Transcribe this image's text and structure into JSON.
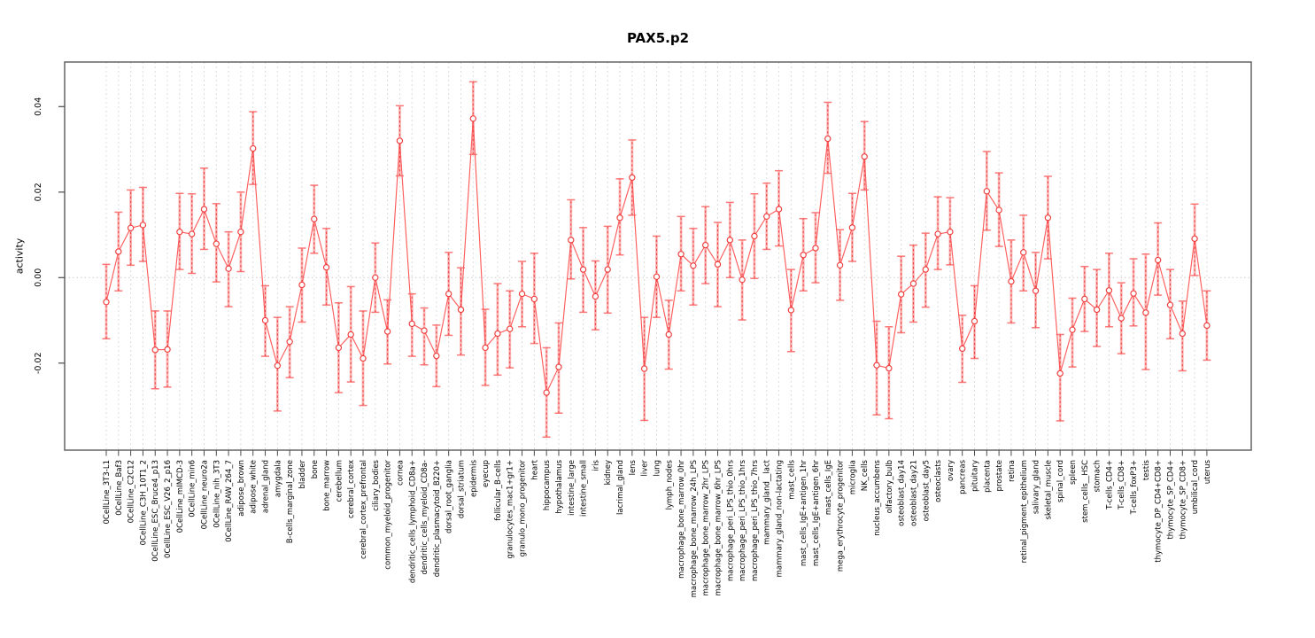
{
  "figure": {
    "kind": "R-style errorbar line plot",
    "background": "#ffffff"
  },
  "colors": {
    "series_line": "#ff5c5c",
    "error_band": "rgba(252,110,110,0.50)",
    "error_cap": "rgba(250,96,96,0.85)",
    "error_center_dash": "#ef3b3b",
    "marker_stroke": "#ef3b3b",
    "marker_fill": "#ffffff",
    "grid_vertical": "#dcdcdc",
    "zero_line": "#c9c9c9",
    "frame": "#6e6e6e",
    "tick": "#4a4a4a",
    "text": "#000000"
  },
  "chart_data": {
    "type": "line",
    "title": "PAX5.p2",
    "xlabel": "",
    "ylabel": "activity",
    "ylim": [
      -0.0408,
      0.05
    ],
    "yticks": [
      -0.02,
      0,
      0.02,
      0.04
    ],
    "ytick_labels": [
      "-0.02",
      "0.00",
      "0.02",
      "0.04"
    ],
    "grid": "vertical dashed gridline at every category; dotted horizontal line at y=0",
    "legend_position": "none",
    "marker": "open-circle",
    "error_bars": true,
    "categories": [
      "0CellLine_3T3-L1",
      "0CellLine_Baf3",
      "0CellLine_C2C12",
      "0CellLine_C3H_10T1_2",
      "0CellLine_ESC_Bruce4_p13",
      "0CellLine_ESC_V26_2_p16",
      "0CellLine_mIMCD-3",
      "0CellLine_min6",
      "0CellLine_neuro2a",
      "0CellLine_nih_3T3",
      "0CellLine_RAW_264_7",
      "adipose_brown",
      "adipose_white",
      "adrenal_gland",
      "amygdala",
      "B-cells_marginal_zone",
      "bladder",
      "bone",
      "bone_marrow",
      "cerebellum",
      "cerebral_cortex",
      "cerebral_cortex_prefrontal",
      "ciliary_bodies",
      "common_myeloid_progenitor",
      "cornea",
      "dendritic_cells_lymphoid_CD8a+",
      "dendritic_cells_myeloid_CD8a-",
      "dendritic_plasmacytoid_B220+",
      "dorsal_root_ganglia",
      "dorsal_striatum",
      "epidermis",
      "eyecup",
      "follicular_B-cells",
      "granulocytes_mac1+gr1+",
      "granulo_mono_progenitor",
      "heart",
      "hippocampus",
      "hypothalamus",
      "intestine_large",
      "intestine_small",
      "iris",
      "kidney",
      "lacrimal_gland",
      "lens",
      "liver",
      "lung",
      "lymph_nodes",
      "macrophage_bone_marrow_0hr",
      "macrophage_bone_marrow_24h_LPS",
      "macrophage_bone_marrow_2hr_LPS",
      "macrophage_bone_marrow_6hr_LPS",
      "macrophage_peri_LPS_thio_0hrs",
      "macrophage_peri_LPS_thio_1hrs",
      "macrophage_peri_LPS_thio_7hrs",
      "mammary_gland__lact",
      "mammary_gland_non-lactating",
      "mast_cells",
      "mast_cells_IgE+antigen_1hr",
      "mast_cells_IgE+antigen_6hr",
      "mast_cells_IgE",
      "mega_erythrocyte_progenitor",
      "microglia",
      "NK_cells",
      "nucleus_accumbens",
      "olfactory_bulb",
      "osteoblast_day14",
      "osteoblast_day21",
      "osteoblast_day5",
      "osteoclasts",
      "ovary",
      "pancreas",
      "pituitary",
      "placenta",
      "prostate",
      "retina",
      "retinal_pigment_epithelium",
      "salivary_gland",
      "skeletal_muscle",
      "spinal_cord",
      "spleen",
      "stem_cells__HSC",
      "stomach",
      "T-cells_CD4+",
      "T-cells_CD8+",
      "T-cells_foxP3+",
      "testis",
      "thymocyte_DP_CD4+CD8+",
      "thymocyte_SP_CD4+",
      "thymocyte_SP_CD8+",
      "umbilical_cord",
      "uterus"
    ],
    "series": [
      {
        "name": "activity",
        "values": [
          -0.0057,
          0.0061,
          0.0116,
          0.0123,
          -0.0169,
          -0.0168,
          0.0107,
          0.0102,
          0.016,
          0.0079,
          0.0021,
          0.0107,
          0.0302,
          -0.01,
          -0.0206,
          -0.015,
          -0.0017,
          0.0137,
          0.0024,
          -0.0164,
          -0.0133,
          -0.0189,
          0.0,
          -0.0126,
          0.032,
          -0.0108,
          -0.0124,
          -0.0183,
          -0.0038,
          -0.0075,
          0.0372,
          -0.0164,
          -0.0131,
          -0.012,
          -0.0038,
          -0.005,
          -0.0269,
          -0.0209,
          0.0088,
          0.0019,
          -0.0044,
          0.0019,
          0.014,
          0.0234,
          -0.0213,
          0.0002,
          -0.0133,
          0.0055,
          0.0028,
          0.0076,
          0.0031,
          0.0088,
          -0.0005,
          0.0097,
          0.0143,
          0.016,
          -0.0076,
          0.0053,
          0.0069,
          0.0325,
          0.0029,
          0.0117,
          0.0283,
          -0.0205,
          -0.0212,
          -0.0039,
          -0.0014,
          0.0019,
          0.0102,
          0.0107,
          -0.0166,
          -0.0102,
          0.0202,
          0.0158,
          -0.0009,
          0.0059,
          -0.0031,
          0.014,
          -0.0224,
          -0.0122,
          -0.005,
          -0.0075,
          -0.003,
          -0.0095,
          -0.0037,
          -0.0082,
          0.0041,
          -0.0064,
          -0.0131,
          0.0091,
          -0.0112
        ],
        "ci_low": [
          -0.0143,
          -0.0031,
          0.0029,
          0.0038,
          -0.026,
          -0.0256,
          0.0019,
          0.001,
          0.0066,
          -0.001,
          -0.0068,
          0.0014,
          0.0218,
          -0.0184,
          -0.0312,
          -0.0234,
          -0.0104,
          0.0057,
          -0.0064,
          -0.0269,
          -0.0244,
          -0.0299,
          -0.0081,
          -0.0202,
          0.0238,
          -0.0184,
          -0.0204,
          -0.0255,
          -0.0135,
          -0.0181,
          0.0288,
          -0.0252,
          -0.0228,
          -0.0211,
          -0.0115,
          -0.0154,
          -0.0373,
          -0.0317,
          -0.0003,
          -0.0081,
          -0.0122,
          -0.0083,
          0.0053,
          0.0146,
          -0.0334,
          -0.0093,
          -0.0214,
          -0.0031,
          -0.0064,
          -0.0014,
          -0.0068,
          0.0,
          -0.0099,
          -0.0002,
          0.0066,
          0.0074,
          -0.0173,
          -0.0031,
          -0.0012,
          0.0244,
          -0.0053,
          0.0038,
          0.0205,
          -0.0321,
          -0.033,
          -0.0129,
          -0.0104,
          -0.0069,
          0.0019,
          0.003,
          -0.0245,
          -0.0189,
          0.0111,
          0.0073,
          -0.0106,
          -0.0031,
          -0.0117,
          0.0044,
          -0.0335,
          -0.0209,
          -0.0126,
          -0.0161,
          -0.0115,
          -0.0178,
          -0.0113,
          -0.0215,
          -0.0041,
          -0.0143,
          -0.0218,
          0.0005,
          -0.0193
        ],
        "ci_high": [
          0.0031,
          0.0153,
          0.0205,
          0.0211,
          -0.0078,
          -0.0078,
          0.0197,
          0.0196,
          0.0256,
          0.0173,
          0.0107,
          0.02,
          0.0388,
          -0.0019,
          -0.0093,
          -0.0068,
          0.0069,
          0.0216,
          0.0115,
          -0.0059,
          -0.0021,
          -0.0078,
          0.0081,
          -0.0052,
          0.0402,
          -0.0038,
          -0.0071,
          -0.0111,
          0.0059,
          0.0023,
          0.0458,
          -0.0074,
          -0.0014,
          -0.0031,
          0.0038,
          0.0057,
          -0.0164,
          -0.0106,
          0.0182,
          0.0117,
          0.0039,
          0.012,
          0.0231,
          0.0322,
          -0.0093,
          0.0097,
          -0.0053,
          0.0143,
          0.0115,
          0.0166,
          0.0129,
          0.0176,
          0.0088,
          0.0196,
          0.0221,
          0.025,
          0.0019,
          0.0138,
          0.0152,
          0.041,
          0.0112,
          0.0197,
          0.0365,
          -0.0102,
          -0.0115,
          0.005,
          0.0076,
          0.0104,
          0.0189,
          0.0187,
          -0.0088,
          -0.0019,
          0.0295,
          0.0245,
          0.0088,
          0.0146,
          0.0059,
          0.0237,
          -0.0133,
          -0.0048,
          0.0026,
          0.0019,
          0.0057,
          -0.0012,
          0.0044,
          0.0055,
          0.0128,
          0.0019,
          -0.0055,
          0.0172,
          -0.0031
        ]
      }
    ]
  }
}
